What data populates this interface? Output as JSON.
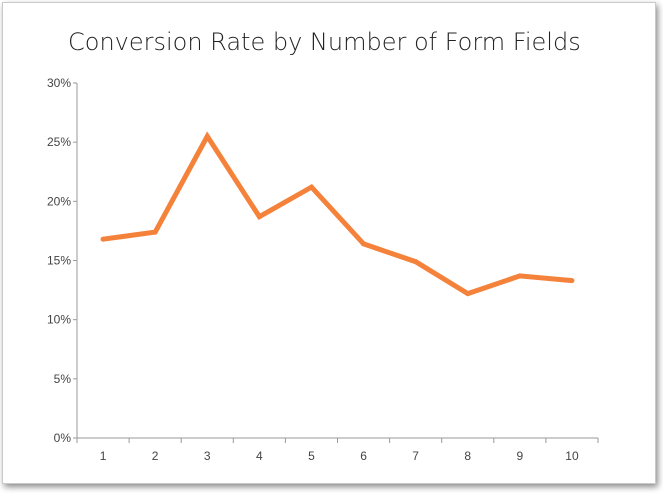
{
  "chart_data": {
    "type": "line",
    "title": "Conversion Rate by Number of Form Fields",
    "xlabel": "",
    "ylabel": "",
    "categories": [
      "1",
      "2",
      "3",
      "4",
      "5",
      "6",
      "7",
      "8",
      "9",
      "10"
    ],
    "series": [
      {
        "values": [
          16.8,
          17.4,
          25.5,
          18.7,
          21.2,
          16.4,
          14.9,
          12.2,
          13.7,
          13.3
        ]
      }
    ],
    "ylim": [
      0,
      30
    ],
    "y_ticks": [
      "0%",
      "5%",
      "10%",
      "15%",
      "20%",
      "25%",
      "30%"
    ],
    "y_tick_values": [
      0,
      5,
      10,
      15,
      20,
      25,
      30
    ],
    "grid": false,
    "legend": "none",
    "colors": {
      "line": "#f5823a",
      "axis": "#9a9a9a"
    }
  }
}
